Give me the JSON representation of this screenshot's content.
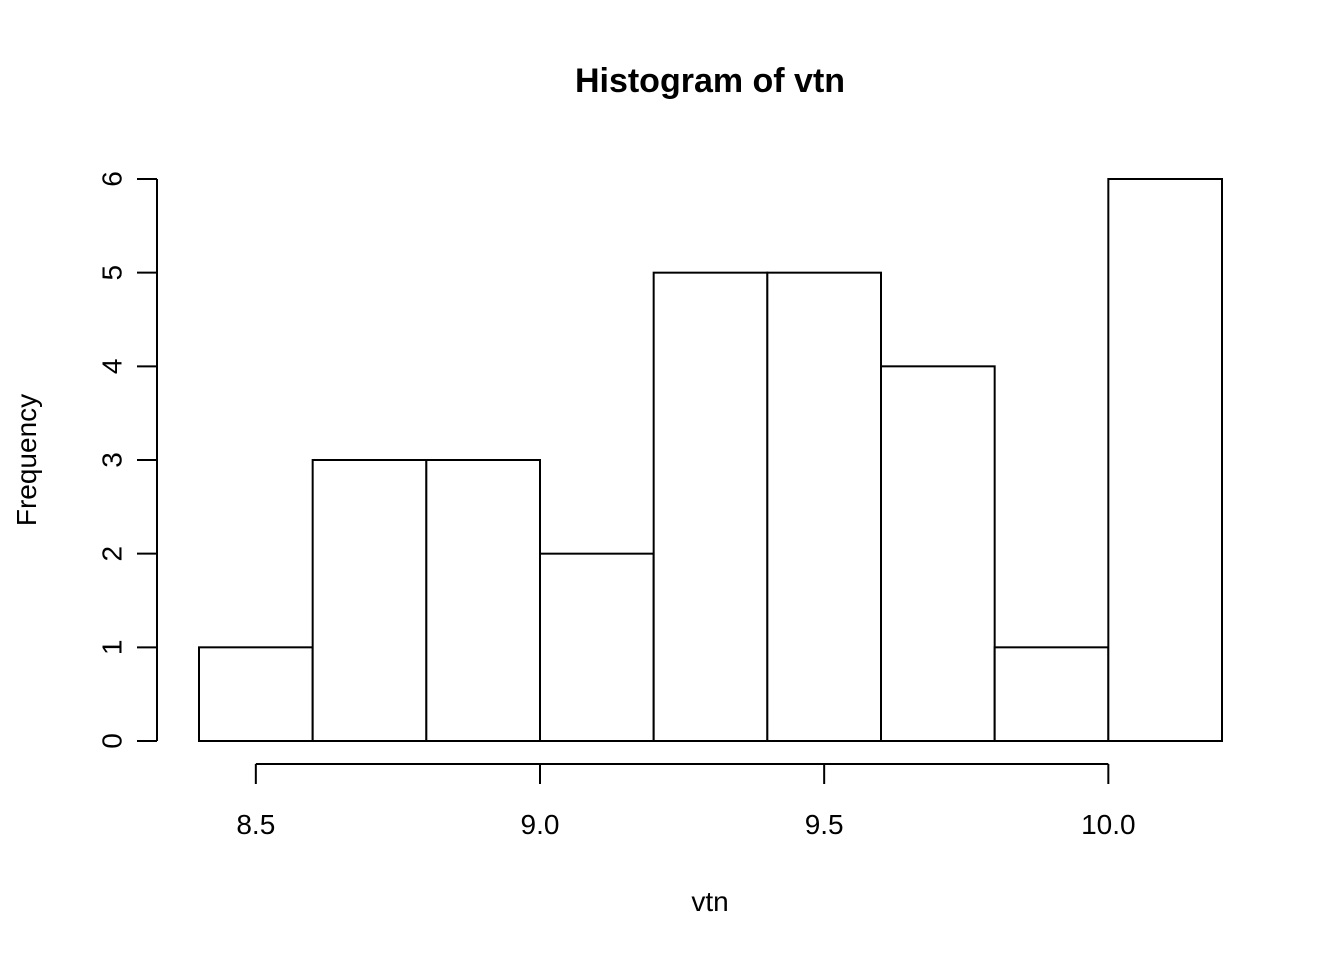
{
  "chart_data": {
    "type": "bar",
    "title": "Histogram of vtn",
    "xlabel": "vtn",
    "ylabel": "Frequency",
    "bin_edges": [
      8.4,
      8.6,
      8.8,
      9.0,
      9.2,
      9.4,
      9.6,
      9.8,
      10.0,
      10.2
    ],
    "values": [
      1,
      3,
      3,
      2,
      5,
      5,
      4,
      1,
      6
    ],
    "xlim": [
      8.4,
      10.2
    ],
    "ylim": [
      0,
      6
    ],
    "x_ticks": [
      8.5,
      9.0,
      9.5,
      10.0
    ],
    "x_tick_labels": [
      "8.5",
      "9.0",
      "9.5",
      "10.0"
    ],
    "y_ticks": [
      0,
      1,
      2,
      3,
      4,
      5,
      6
    ],
    "y_tick_labels": [
      "0",
      "1",
      "2",
      "3",
      "4",
      "5",
      "6"
    ],
    "grid": false,
    "legend": "none"
  }
}
